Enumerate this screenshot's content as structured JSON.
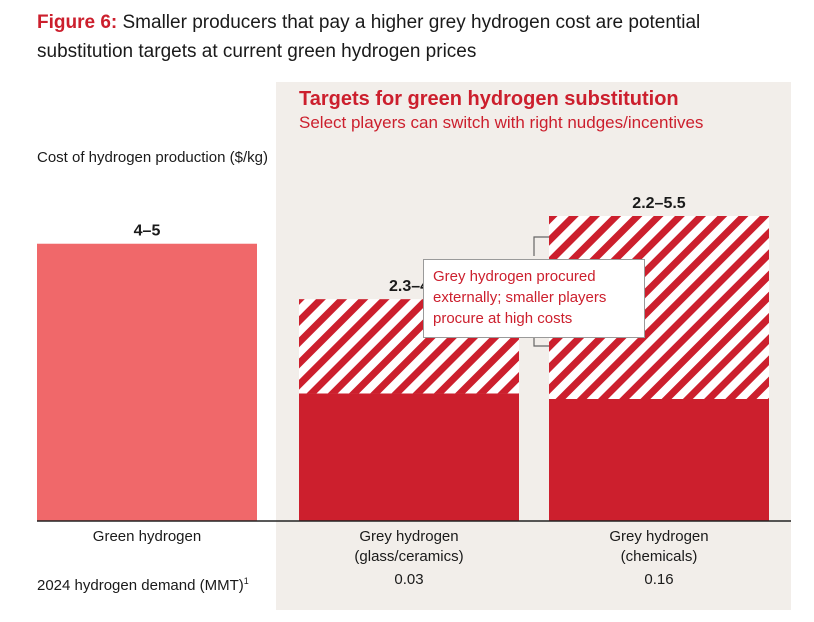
{
  "figure": {
    "label": "Figure 6:",
    "text": " Smaller producers that pay a higher grey hydrogen cost are potential substitution targets at current green hydrogen prices"
  },
  "panel": {
    "title": "Targets for green hydrogen substitution",
    "subtitle": "Select players can switch with right nudges/incentives"
  },
  "callout": "Grey hydrogen procured externally; smaller players procure at high costs",
  "demand_row": {
    "label": "2024 hydrogen demand (MMT)",
    "footnote": "1",
    "values": [
      "",
      "0.03",
      "0.16"
    ]
  },
  "colors": {
    "green_h2": "#f0686a",
    "grey_h2": "#cc1f2d",
    "accent": "#cc1f2d",
    "panel_bg": "#f2eeea"
  },
  "chart_data": {
    "type": "bar",
    "ytitle": "Cost of hydrogen production ($/kg)",
    "categories": [
      "Green hydrogen",
      "Grey hydrogen\n(glass/ceramics)",
      "Grey hydrogen\n(chemicals)"
    ],
    "ranges": [
      {
        "low": 4,
        "high": 5,
        "label": "4–5",
        "style": "solid"
      },
      {
        "low": 2.3,
        "high": 4,
        "label": "2.3–4",
        "style": "range"
      },
      {
        "low": 2.2,
        "high": 5.5,
        "label": "2.2–5.5",
        "style": "range"
      }
    ],
    "ylim": [
      0,
      5.5
    ],
    "grid": false
  }
}
